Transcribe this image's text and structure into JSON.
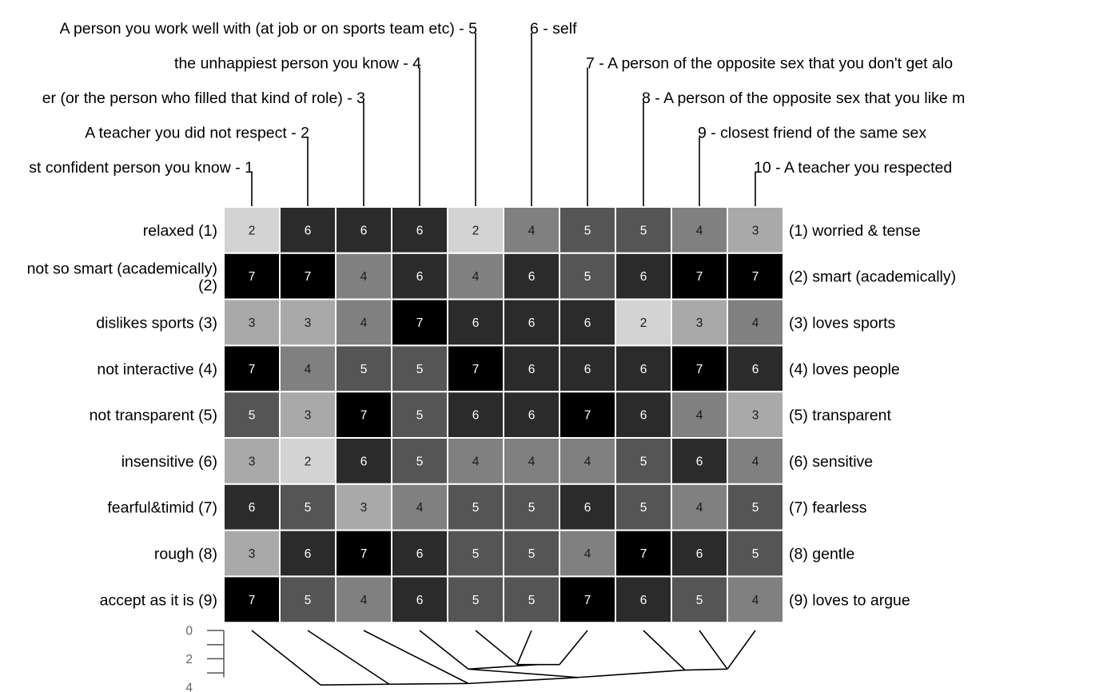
{
  "chart_data": {
    "type": "heatmap",
    "description_visible": "repertory grid with element labels on top, construct poles on left and right, rating cells 1-7 and an element dendrogram below",
    "elements": [
      "A person you work well with (at job or on sports team etc) - 5",
      "the unhappiest person you know - 4",
      "er (or the person who filled that kind of role) - 3",
      "A teacher you did not respect - 2",
      "st confident person you know - 1",
      "6 - self",
      "7 - A person of the opposite sex that you don't get alo",
      "8 - A person of the opposite sex that you like m",
      "9 - closest friend of the same sex",
      "10 - A teacher you respected"
    ],
    "left_poles": [
      "relaxed (1)",
      "not so smart (academically) (2)",
      "dislikes sports (3)",
      "not interactive (4)",
      "not transparent (5)",
      "insensitive (6)",
      "fearful&timid (7)",
      "rough (8)",
      "accept as it is (9)"
    ],
    "right_poles": [
      "(1) worried & tense",
      "(2) smart (academically)",
      "(3) loves sports",
      "(4) loves people",
      "(5) transparent",
      "(6) sensitive",
      "(7) fearless",
      "(8) gentle",
      "(9) loves to argue"
    ],
    "column_order": [
      "1",
      "2",
      "3",
      "4",
      "5",
      "6",
      "7",
      "8",
      "9",
      "10"
    ],
    "ratings": [
      [
        2,
        6,
        6,
        6,
        2,
        4,
        5,
        5,
        4,
        3
      ],
      [
        7,
        7,
        4,
        6,
        4,
        6,
        5,
        6,
        7,
        7
      ],
      [
        3,
        3,
        4,
        7,
        6,
        6,
        6,
        2,
        3,
        4
      ],
      [
        7,
        4,
        5,
        5,
        7,
        6,
        6,
        6,
        7,
        6
      ],
      [
        5,
        3,
        7,
        5,
        6,
        6,
        7,
        6,
        4,
        3
      ],
      [
        3,
        2,
        6,
        5,
        4,
        4,
        4,
        5,
        6,
        4
      ],
      [
        6,
        5,
        3,
        4,
        5,
        5,
        6,
        5,
        4,
        5
      ],
      [
        3,
        6,
        7,
        6,
        5,
        5,
        4,
        7,
        6,
        5
      ],
      [
        7,
        5,
        4,
        6,
        5,
        5,
        7,
        6,
        5,
        4
      ]
    ],
    "color_scale": {
      "2": "#d3d3d3",
      "3": "#a9a9a9",
      "4": "#808080",
      "5": "#555555",
      "6": "#2b2b2b",
      "7": "#000000"
    },
    "dendrogram_scale": {
      "tick_labels": [
        "0",
        "2",
        "4"
      ],
      "range": [
        0,
        4.5
      ]
    },
    "dendrogram_merges": [
      {
        "left": [
          6,
          7
        ],
        "height": 1.0
      },
      {
        "left": [
          5,
          6,
          7
        ],
        "height": 1.05
      },
      {
        "left": [
          9,
          10
        ],
        "height": 1.65
      },
      {
        "left": [
          4,
          5,
          6,
          7
        ],
        "height": 1.7
      },
      {
        "left": [
          8,
          9,
          10
        ],
        "height": 2.1
      },
      {
        "left": [
          4,
          5,
          6,
          7,
          8,
          9,
          10
        ],
        "height": 3.05
      },
      {
        "left": [
          3,
          4,
          5,
          6,
          7,
          8,
          9,
          10
        ],
        "height": 3.7
      },
      {
        "left": [
          2,
          3,
          4,
          5,
          6,
          7,
          8,
          9,
          10
        ],
        "height": 3.78
      },
      {
        "left": [
          1,
          2,
          3,
          4,
          5,
          6,
          7,
          8,
          9,
          10
        ],
        "height": 3.85
      }
    ]
  }
}
